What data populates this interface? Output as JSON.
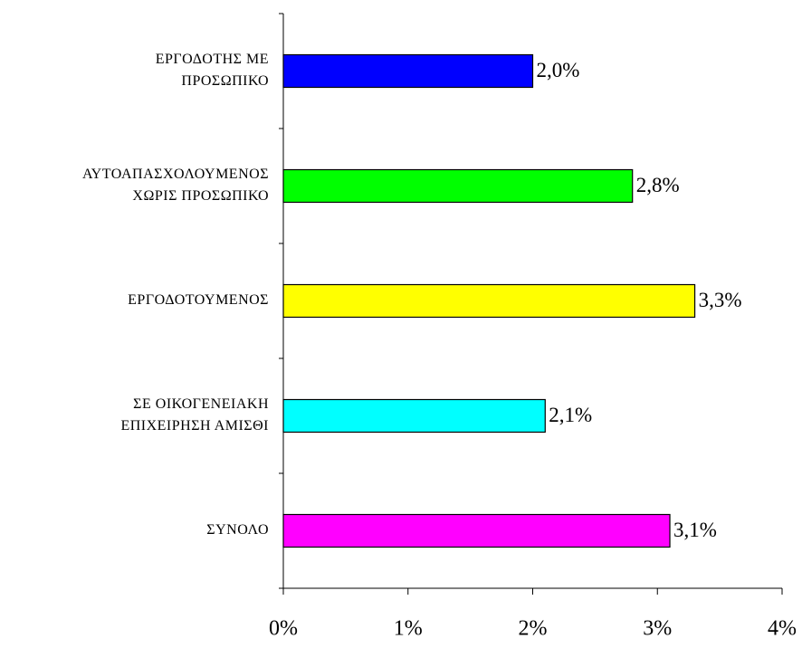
{
  "chart_data": {
    "type": "bar",
    "orientation": "horizontal",
    "categories": [
      [
        "ΕΡΓΟΔΟΤΗΣ ΜΕ",
        "ΠΡΟΣΩΠΙΚΟ"
      ],
      [
        "ΑΥΤΟΑΠΑΣΧΟΛΟΥΜΕΝΟΣ",
        "ΧΩΡΙΣ ΠΡΟΣΩΠΙΚΟ"
      ],
      [
        "ΕΡΓΟΔΟΤΟΥΜΕΝΟΣ"
      ],
      [
        "ΣΕ ΟΙΚΟΓΕΝΕΙΑΚΗ",
        "ΕΠΙΧΕΙΡΗΣΗ ΑΜΙΣΘΙ"
      ],
      [
        "ΣΥΝΟΛΟ"
      ]
    ],
    "values": [
      2.0,
      2.8,
      3.3,
      2.1,
      3.1
    ],
    "value_labels": [
      "2,0%",
      "2,8%",
      "3,3%",
      "2,1%",
      "3,1%"
    ],
    "colors": [
      "#0000ff",
      "#00ff00",
      "#ffff00",
      "#00ffff",
      "#ff00ff"
    ],
    "xlim": [
      0,
      4
    ],
    "xticks": [
      {
        "value": 0,
        "label": "0%"
      },
      {
        "value": 1,
        "label": "1%"
      },
      {
        "value": 2,
        "label": "2%"
      },
      {
        "value": 3,
        "label": "3%"
      },
      {
        "value": 4,
        "label": "4%"
      }
    ],
    "grid": false
  }
}
